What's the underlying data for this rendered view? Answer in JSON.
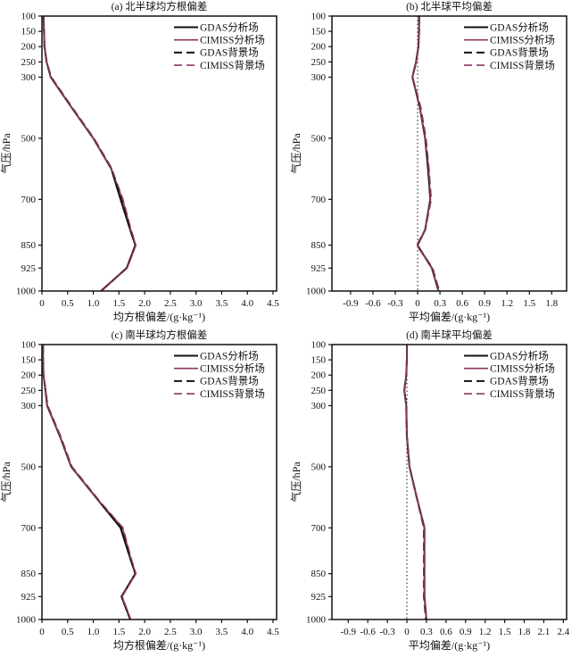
{
  "figure": {
    "background": "#ffffff",
    "text_color": "#111111",
    "frame_color": "#111111",
    "gdas_color": "#111111",
    "cimiss_color": "#8e3663"
  },
  "chart_data": [
    {
      "key": "a",
      "type": "line",
      "title": "(a) 北半球均方根偏差",
      "xlabel": "均方根偏差/(g·kg⁻¹)",
      "ylabel": "气压/hPa",
      "xlim": [
        0,
        4.57
      ],
      "xticks": [
        0,
        0.5,
        1.0,
        1.5,
        2.0,
        2.5,
        3.0,
        3.5,
        4.0,
        4.5
      ],
      "xtick_labels": [
        "0",
        "0.5",
        "1.0",
        "1.5",
        "2.0",
        "2.5",
        "3.0",
        "3.5",
        "4.0",
        "4.5"
      ],
      "ylim": [
        100,
        1000
      ],
      "y_inverted": true,
      "yticks": [
        100,
        150,
        200,
        250,
        300,
        500,
        700,
        850,
        925,
        1000
      ],
      "ytick_labels": [
        "100",
        "150",
        "200",
        "250",
        "300",
        "500",
        "700",
        "850",
        "925",
        "1000"
      ],
      "zero_line": false,
      "grid": false,
      "legend_position": "top-right",
      "levels_hPa": [
        100,
        150,
        200,
        250,
        300,
        400,
        500,
        600,
        700,
        800,
        850,
        925,
        1000
      ],
      "series": [
        {
          "name": "GDAS分析场",
          "color": "#111111",
          "style": "solid",
          "values": [
            0.03,
            0.04,
            0.05,
            0.09,
            0.17,
            0.58,
            1.0,
            1.35,
            1.53,
            1.72,
            1.82,
            1.65,
            1.15
          ]
        },
        {
          "name": "CIMISS分析场",
          "color": "#8e3663",
          "style": "solid",
          "values": [
            0.03,
            0.04,
            0.05,
            0.09,
            0.17,
            0.58,
            1.0,
            1.35,
            1.57,
            1.73,
            1.83,
            1.66,
            1.16
          ]
        },
        {
          "name": "GDAS背景场",
          "color": "#111111",
          "style": "dashed",
          "values": [
            0.03,
            0.04,
            0.05,
            0.09,
            0.18,
            0.59,
            1.01,
            1.36,
            1.54,
            1.72,
            1.82,
            1.65,
            1.15
          ]
        },
        {
          "name": "CIMISS背景场",
          "color": "#8e3663",
          "style": "dashed",
          "values": [
            0.03,
            0.04,
            0.05,
            0.09,
            0.18,
            0.59,
            1.01,
            1.36,
            1.58,
            1.74,
            1.83,
            1.66,
            1.16
          ]
        }
      ]
    },
    {
      "key": "b",
      "type": "line",
      "title": "(b) 北半球平均偏差",
      "xlabel": "平均偏差/(g·kg⁻¹)",
      "ylabel": "气压/hPa",
      "xlim": [
        -1.15,
        2.0
      ],
      "xticks": [
        -0.9,
        -0.6,
        -0.3,
        0,
        0.3,
        0.6,
        0.9,
        1.2,
        1.5,
        1.8
      ],
      "xtick_labels": [
        "-0.9",
        "-0.6",
        "-0.3",
        "0",
        "0.3",
        "0.6",
        "0.9",
        "1.2",
        "1.5",
        "1.8"
      ],
      "ylim": [
        100,
        1000
      ],
      "y_inverted": true,
      "yticks": [
        100,
        150,
        200,
        250,
        300,
        500,
        700,
        850,
        925,
        1000
      ],
      "ytick_labels": [
        "100",
        "150",
        "200",
        "250",
        "300",
        "500",
        "700",
        "850",
        "925",
        "1000"
      ],
      "zero_line": true,
      "grid": false,
      "legend_position": "top-right",
      "levels_hPa": [
        100,
        150,
        200,
        250,
        300,
        400,
        500,
        600,
        700,
        800,
        850,
        925,
        1000
      ],
      "series": [
        {
          "name": "GDAS分析场",
          "color": "#111111",
          "style": "solid",
          "values": [
            0.02,
            0.02,
            0.01,
            -0.02,
            -0.07,
            0.03,
            0.1,
            0.14,
            0.17,
            0.1,
            0.0,
            0.19,
            0.28
          ]
        },
        {
          "name": "CIMISS分析场",
          "color": "#8e3663",
          "style": "solid",
          "values": [
            0.02,
            0.02,
            0.01,
            -0.02,
            -0.07,
            0.03,
            0.1,
            0.15,
            0.17,
            0.1,
            0.0,
            0.19,
            0.28
          ]
        },
        {
          "name": "GDAS背景场",
          "color": "#111111",
          "style": "dashed",
          "values": [
            0.02,
            0.02,
            0.01,
            -0.02,
            -0.07,
            0.04,
            0.11,
            0.15,
            0.18,
            0.1,
            -0.01,
            0.2,
            0.29
          ]
        },
        {
          "name": "CIMISS背景场",
          "color": "#8e3663",
          "style": "dashed",
          "values": [
            0.02,
            0.02,
            0.01,
            -0.02,
            -0.07,
            0.04,
            0.11,
            0.15,
            0.18,
            0.1,
            -0.01,
            0.2,
            0.29
          ]
        }
      ]
    },
    {
      "key": "c",
      "type": "line",
      "title": "(c) 南半球均方根偏差",
      "xlabel": "均方根偏差/(g·kg⁻¹)",
      "ylabel": "气压/hPa",
      "xlim": [
        0,
        4.57
      ],
      "xticks": [
        0,
        0.5,
        1.0,
        1.5,
        2.0,
        2.5,
        3.0,
        3.5,
        4.0,
        4.5
      ],
      "xtick_labels": [
        "0",
        "0.5",
        "1.0",
        "1.5",
        "2.0",
        "2.5",
        "3.0",
        "3.5",
        "4.0",
        "4.5"
      ],
      "ylim": [
        100,
        1000
      ],
      "y_inverted": true,
      "yticks": [
        100,
        150,
        200,
        250,
        300,
        500,
        700,
        850,
        925,
        1000
      ],
      "ytick_labels": [
        "100",
        "150",
        "200",
        "250",
        "300",
        "500",
        "700",
        "850",
        "925",
        "1000"
      ],
      "zero_line": false,
      "grid": false,
      "legend_position": "top-right",
      "levels_hPa": [
        100,
        150,
        200,
        250,
        300,
        400,
        500,
        600,
        700,
        800,
        850,
        925,
        1000
      ],
      "series": [
        {
          "name": "GDAS分析场",
          "color": "#111111",
          "style": "solid",
          "values": [
            0.02,
            0.02,
            0.03,
            0.07,
            0.1,
            0.35,
            0.57,
            1.05,
            1.53,
            1.72,
            1.82,
            1.55,
            1.72
          ]
        },
        {
          "name": "CIMISS分析场",
          "color": "#8e3663",
          "style": "solid",
          "values": [
            0.02,
            0.02,
            0.03,
            0.07,
            0.1,
            0.35,
            0.57,
            1.05,
            1.57,
            1.73,
            1.83,
            1.56,
            1.73
          ]
        },
        {
          "name": "GDAS背景场",
          "color": "#111111",
          "style": "dashed",
          "values": [
            0.02,
            0.02,
            0.03,
            0.07,
            0.11,
            0.36,
            0.58,
            1.06,
            1.54,
            1.72,
            1.82,
            1.55,
            1.72
          ]
        },
        {
          "name": "CIMISS背景场",
          "color": "#8e3663",
          "style": "dashed",
          "values": [
            0.02,
            0.02,
            0.03,
            0.07,
            0.11,
            0.36,
            0.58,
            1.06,
            1.58,
            1.74,
            1.83,
            1.56,
            1.73
          ]
        }
      ]
    },
    {
      "key": "d",
      "type": "line",
      "title": "(d) 南半球平均偏差",
      "xlabel": "平均偏差/(g·kg⁻¹)",
      "ylabel": "气压/hPa",
      "xlim": [
        -1.15,
        2.45
      ],
      "xticks": [
        -0.9,
        -0.6,
        -0.3,
        0,
        0.3,
        0.6,
        0.9,
        1.2,
        1.5,
        1.8,
        2.1,
        2.4
      ],
      "xtick_labels": [
        "-0.9",
        "-0.6",
        "-0.3",
        "0",
        "0.3",
        "0.6",
        "0.9",
        "1.2",
        "1.5",
        "1.8",
        "2.1",
        "2.4"
      ],
      "ylim": [
        100,
        1000
      ],
      "y_inverted": true,
      "yticks": [
        100,
        150,
        200,
        250,
        300,
        500,
        700,
        850,
        925,
        1000
      ],
      "ytick_labels": [
        "100",
        "150",
        "200",
        "250",
        "300",
        "500",
        "700",
        "850",
        "925",
        "1000"
      ],
      "zero_line": true,
      "grid": false,
      "legend_position": "top-right",
      "levels_hPa": [
        100,
        150,
        200,
        250,
        300,
        400,
        500,
        600,
        700,
        800,
        850,
        925,
        1000
      ],
      "series": [
        {
          "name": "GDAS分析场",
          "color": "#111111",
          "style": "solid",
          "values": [
            0.0,
            0.0,
            -0.01,
            -0.04,
            -0.01,
            0.0,
            0.04,
            0.15,
            0.27,
            0.27,
            0.27,
            0.27,
            0.3
          ]
        },
        {
          "name": "CIMISS分析场",
          "color": "#8e3663",
          "style": "solid",
          "values": [
            0.0,
            0.0,
            -0.01,
            -0.04,
            -0.01,
            0.0,
            0.04,
            0.15,
            0.27,
            0.27,
            0.27,
            0.27,
            0.3
          ]
        },
        {
          "name": "GDAS背景场",
          "color": "#111111",
          "style": "dashed",
          "values": [
            0.0,
            0.0,
            -0.01,
            -0.04,
            -0.01,
            0.0,
            0.04,
            0.15,
            0.26,
            0.26,
            0.26,
            0.26,
            0.29
          ]
        },
        {
          "name": "CIMISS背景场",
          "color": "#8e3663",
          "style": "dashed",
          "values": [
            0.0,
            0.0,
            -0.01,
            -0.04,
            -0.01,
            0.0,
            0.04,
            0.15,
            0.26,
            0.26,
            0.26,
            0.26,
            0.29
          ]
        }
      ]
    }
  ]
}
